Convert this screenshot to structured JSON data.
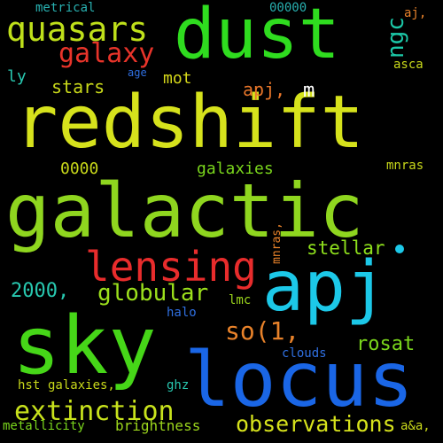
{
  "background": "#000000",
  "words": [
    {
      "text": "redshift",
      "color": "#d6e21c",
      "orientation": "horizontal"
    },
    {
      "text": "galactic",
      "color": "#8fd61f",
      "orientation": "horizontal"
    },
    {
      "text": "apj",
      "color": "#1cc8e8",
      "orientation": "horizontal"
    },
    {
      "text": "locus",
      "color": "#1a66e6",
      "orientation": "horizontal"
    },
    {
      "text": "sky",
      "color": "#46d618",
      "orientation": "horizontal"
    },
    {
      "text": "dust",
      "color": "#2fdc1f",
      "orientation": "horizontal"
    },
    {
      "text": "quasars",
      "color": "#bfe01a",
      "orientation": "horizontal"
    },
    {
      "text": "lensing",
      "color": "#e82c2c",
      "orientation": "horizontal"
    },
    {
      "text": "galaxy",
      "color": "#e8342a",
      "orientation": "horizontal"
    },
    {
      "text": "extinction",
      "color": "#c8e21c",
      "orientation": "horizontal"
    },
    {
      "text": "observations",
      "color": "#d6e21c",
      "orientation": "horizontal"
    },
    {
      "text": "globular",
      "color": "#9ce01c",
      "orientation": "horizontal"
    },
    {
      "text": "so(1,",
      "color": "#e8822a",
      "orientation": "horizontal"
    },
    {
      "text": "stellar",
      "color": "#8ee01c",
      "orientation": "horizontal"
    },
    {
      "text": "rosat",
      "color": "#7ad61c",
      "orientation": "horizontal"
    },
    {
      "text": "ngc",
      "color": "#1cc8a8",
      "orientation": "vertical"
    },
    {
      "text": "stars",
      "color": "#c8d81a",
      "orientation": "horizontal"
    },
    {
      "text": "mot",
      "color": "#d6d81a",
      "orientation": "horizontal"
    },
    {
      "text": "apj,",
      "color": "#e8762a",
      "orientation": "horizontal"
    },
    {
      "text": "m",
      "color": "#ffffff",
      "orientation": "horizontal"
    },
    {
      "text": "galaxies",
      "color": "#7ad61c",
      "orientation": "horizontal"
    },
    {
      "text": "0000",
      "color": "#c8d81a",
      "orientation": "horizontal"
    },
    {
      "text": "2000,",
      "color": "#28c8b0",
      "orientation": "horizontal"
    },
    {
      "text": "galaxies,",
      "color": "#c8d81a",
      "orientation": "horizontal"
    },
    {
      "text": "brightness",
      "color": "#9cd61c",
      "orientation": "horizontal"
    },
    {
      "text": "metallicity",
      "color": "#7ad61c",
      "orientation": "horizontal"
    },
    {
      "text": "metrical",
      "color": "#28b0b0",
      "orientation": "horizontal"
    },
    {
      "text": "00000",
      "color": "#28b0b0",
      "orientation": "horizontal"
    },
    {
      "text": "aj,",
      "color": "#e8822a",
      "orientation": "horizontal"
    },
    {
      "text": "asca",
      "color": "#c8d81a",
      "orientation": "horizontal"
    },
    {
      "text": "ly",
      "color": "#28c8b0",
      "orientation": "horizontal"
    },
    {
      "text": "age",
      "color": "#2f6fe0",
      "orientation": "horizontal"
    },
    {
      "text": "mnras",
      "color": "#c8d81a",
      "orientation": "horizontal"
    },
    {
      "text": "mnras,",
      "color": "#e8822a",
      "orientation": "vertical"
    },
    {
      "text": "halo",
      "color": "#2f6fe0",
      "orientation": "horizontal"
    },
    {
      "text": "lmc",
      "color": "#9cd61c",
      "orientation": "horizontal"
    },
    {
      "text": "clouds",
      "color": "#2f6fe0",
      "orientation": "horizontal"
    },
    {
      "text": "hst",
      "color": "#c8d81a",
      "orientation": "horizontal"
    },
    {
      "text": "ghz",
      "color": "#28c8b0",
      "orientation": "horizontal"
    },
    {
      "text": "a&a,",
      "color": "#c8d81a",
      "orientation": "horizontal"
    }
  ]
}
